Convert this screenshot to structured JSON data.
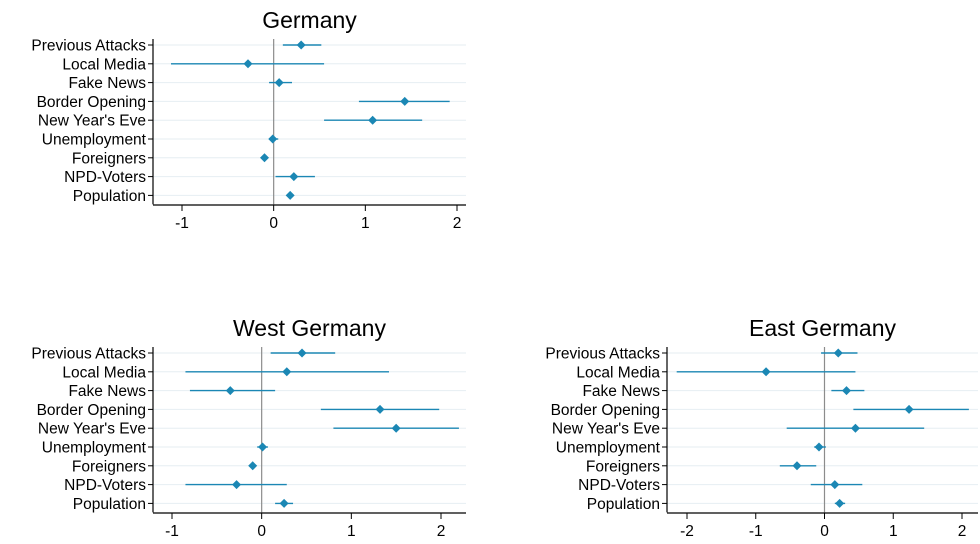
{
  "chart_data": [
    {
      "type": "scatter",
      "title": "Germany",
      "categories": [
        "Previous Attacks",
        "Local Media",
        "Fake News",
        "Border Opening",
        "New Year's Eve",
        "Unemployment",
        "Foreigners",
        "NPD-Voters",
        "Population"
      ],
      "estimates": [
        0.3,
        -0.28,
        0.06,
        1.43,
        1.08,
        -0.01,
        -0.1,
        0.22,
        0.18
      ],
      "ci_low": [
        0.1,
        -1.12,
        -0.05,
        0.93,
        0.55,
        -0.05,
        -0.12,
        0.02,
        0.15
      ],
      "ci_high": [
        0.52,
        0.55,
        0.2,
        1.92,
        1.62,
        0.05,
        -0.08,
        0.45,
        0.21
      ],
      "x_ticks": [
        -1,
        0,
        1,
        2
      ],
      "xlim": [
        -1.18,
        2.08
      ],
      "reference_line": 0,
      "grid": true
    },
    {
      "type": "scatter",
      "title": "West Germany",
      "categories": [
        "Previous Attacks",
        "Local Media",
        "Fake News",
        "Border Opening",
        "New Year's Eve",
        "Unemployment",
        "Foreigners",
        "NPD-Voters",
        "Population"
      ],
      "estimates": [
        0.45,
        0.28,
        -0.35,
        1.32,
        1.5,
        0.01,
        -0.1,
        -0.28,
        0.25
      ],
      "ci_low": [
        0.1,
        -0.85,
        -0.8,
        0.66,
        0.8,
        -0.05,
        -0.14,
        -0.85,
        0.15
      ],
      "ci_high": [
        0.82,
        1.42,
        0.15,
        1.98,
        2.2,
        0.07,
        -0.06,
        0.28,
        0.35
      ],
      "x_ticks": [
        -1,
        0,
        1,
        2
      ],
      "xlim": [
        -1.05,
        2.25
      ],
      "reference_line": 0,
      "grid": true
    },
    {
      "type": "scatter",
      "title": "East Germany",
      "categories": [
        "Previous Attacks",
        "Local Media",
        "Fake News",
        "Border Opening",
        "New Year's Eve",
        "Unemployment",
        "Foreigners",
        "NPD-Voters",
        "Population"
      ],
      "estimates": [
        0.2,
        -0.85,
        0.32,
        1.23,
        0.45,
        -0.08,
        -0.4,
        0.15,
        0.22
      ],
      "ci_low": [
        -0.05,
        -2.15,
        0.1,
        0.42,
        -0.55,
        -0.15,
        -0.65,
        -0.2,
        0.15
      ],
      "ci_high": [
        0.48,
        0.45,
        0.58,
        2.1,
        1.45,
        0.02,
        -0.12,
        0.55,
        0.3
      ],
      "x_ticks": [
        -2,
        -1,
        0,
        1,
        2
      ],
      "xlim": [
        -2.3,
        2.15
      ],
      "reference_line": 0,
      "grid": true
    }
  ],
  "colors": {
    "marker": "#1b87b4",
    "ci_line": "#1b87b4",
    "grid": "#e6eef2",
    "reference_line": "#8c8c8c",
    "axis": "#000000",
    "text": "#000000"
  }
}
